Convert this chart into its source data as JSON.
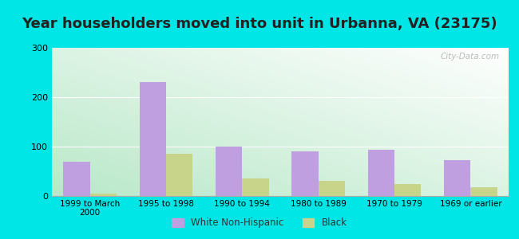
{
  "title": "Year householders moved into unit in Urbanna, VA (23175)",
  "categories": [
    "1999 to March\n2000",
    "1995 to 1998",
    "1990 to 1994",
    "1980 to 1989",
    "1970 to 1979",
    "1969 or earlier"
  ],
  "white_values": [
    70,
    230,
    100,
    90,
    93,
    73
  ],
  "black_values": [
    5,
    85,
    35,
    30,
    25,
    18
  ],
  "white_color": "#bf9fdf",
  "black_color": "#c8d48a",
  "ylim": [
    0,
    300
  ],
  "yticks": [
    0,
    100,
    200,
    300
  ],
  "background_outer": "#00e5e5",
  "gradient_left_bottom": "#b8e8c8",
  "gradient_right_top": "#ffffff",
  "title_fontsize": 13,
  "bar_width": 0.35,
  "legend_white": "White Non-Hispanic",
  "legend_black": "Black",
  "watermark": "City-Data.com"
}
